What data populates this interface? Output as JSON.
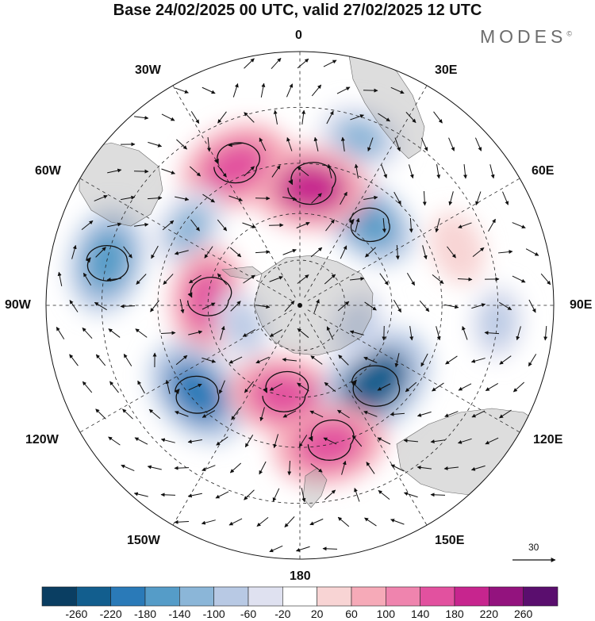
{
  "title": "Base 24/02/2025 00 UTC, valid 27/02/2025 12 UTC",
  "brand": "MODES",
  "brand_mark": "©",
  "projection": "south-polar-stereographic",
  "longitude_labels": {
    "lon_0": "0",
    "lon_30E": "30E",
    "lon_60E": "60E",
    "lon_90E": "90E",
    "lon_120E": "120E",
    "lon_150E": "150E",
    "lon_180": "180",
    "lon_150W": "150W",
    "lon_120W": "120W",
    "lon_90W": "90W",
    "lon_60W": "60W",
    "lon_30W": "30W"
  },
  "reference_vector": {
    "label": "30"
  },
  "colorbar": {
    "colors": [
      "#0a3e62",
      "#125e8e",
      "#2a7ab8",
      "#559cc8",
      "#8bb6d8",
      "#b8c9e4",
      "#dfe1f0",
      "#ffffff",
      "#f8d4d4",
      "#f6aab8",
      "#ef84ae",
      "#e2519f",
      "#c7258e",
      "#93137e",
      "#5a0e6e"
    ],
    "labels": [
      "-260",
      "-220",
      "-180",
      "-140",
      "-100",
      "-60",
      "-20",
      "20",
      "60",
      "100",
      "140",
      "180",
      "220",
      "260"
    ]
  },
  "anomaly_centers": [
    {
      "lon": 20,
      "lat": -35,
      "value": -100
    },
    {
      "lon": 40,
      "lat": -55,
      "value": -140
    },
    {
      "lon": 5,
      "lat": -52,
      "value": 200
    },
    {
      "lon": -25,
      "lat": -42,
      "value": 180
    },
    {
      "lon": -55,
      "lat": -47,
      "value": -100
    },
    {
      "lon": -77,
      "lat": -30,
      "value": -160
    },
    {
      "lon": -87,
      "lat": -60,
      "value": 160
    },
    {
      "lon": -130,
      "lat": -47,
      "value": -180
    },
    {
      "lon": -170,
      "lat": -60,
      "value": 180
    },
    {
      "lon": 136,
      "lat": -55,
      "value": -220
    },
    {
      "lon": 168,
      "lat": -45,
      "value": 180
    },
    {
      "lon": 70,
      "lat": -38,
      "value": 60
    },
    {
      "lon": 95,
      "lat": -30,
      "value": -60
    },
    {
      "lon": 110,
      "lat": -70,
      "value": -60
    },
    {
      "lon": -110,
      "lat": -70,
      "value": -60
    }
  ]
}
